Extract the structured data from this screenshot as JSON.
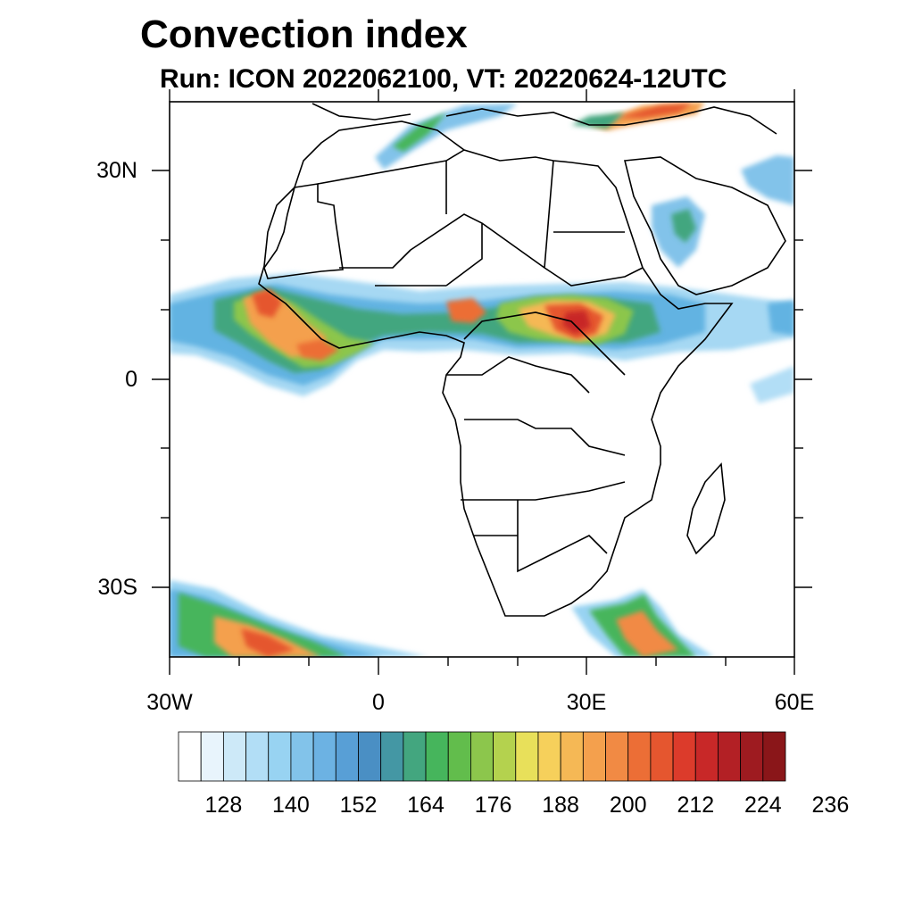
{
  "title": "Convection index",
  "subtitle": "Run: ICON 2022062100,  VT: 20220624-12UTC",
  "map": {
    "projection": "cylindrical equidistant",
    "lon_range": [
      -30,
      60
    ],
    "lat_range": [
      -40,
      40
    ],
    "x_ticks": [
      "30W",
      "0",
      "30E",
      "60E"
    ],
    "y_ticks": [
      "30N",
      "0",
      "30S"
    ]
  },
  "colorbar": {
    "colors": [
      "#ffffff",
      "#e8f4fc",
      "#cde9f8",
      "#b2def6",
      "#98d3f2",
      "#82c3ea",
      "#6cb2e3",
      "#589fd6",
      "#4a8fc4",
      "#4497a4",
      "#43a67f",
      "#46b55c",
      "#62bd4c",
      "#8cc64c",
      "#b4d24e",
      "#e8e05a",
      "#f6d05b",
      "#f5b855",
      "#f4a04d",
      "#f18a44",
      "#ec6e36",
      "#e5562f",
      "#dc3b2b",
      "#c82828",
      "#b32025",
      "#9e1b20",
      "#8a1619"
    ],
    "labels": [
      "128",
      "140",
      "152",
      "164",
      "176",
      "188",
      "200",
      "212",
      "224",
      "236"
    ]
  }
}
